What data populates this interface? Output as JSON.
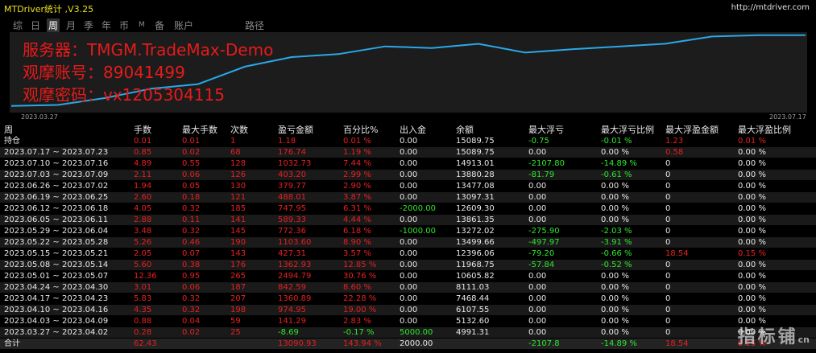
{
  "window": {
    "title": "MTDriver统计 ,V3.25",
    "url": "http://mtdriver.com"
  },
  "tabs": [
    {
      "label": "综",
      "active": false
    },
    {
      "label": "日",
      "active": false
    },
    {
      "label": "周",
      "active": true
    },
    {
      "label": "月",
      "active": false
    },
    {
      "label": "季",
      "active": false
    },
    {
      "label": "年",
      "active": false
    },
    {
      "label": "币",
      "active": false
    },
    {
      "label": "M",
      "active": false
    },
    {
      "label": "备",
      "active": false
    },
    {
      "label": "账户",
      "active": false
    },
    {
      "label": "路径",
      "active": false
    }
  ],
  "overlay": {
    "line1": "服务器：TMGM.TradeMax-Demo",
    "line2": "观摩账号：89041499",
    "line3": "观摩密码：vx1205304115"
  },
  "chart_data": {
    "type": "line",
    "x_start_label": "2023.03.27",
    "x_end_label": "2023.07.17",
    "values": [
      4991.31,
      5132.6,
      6107.55,
      7468.44,
      8111.03,
      10605.82,
      11968.75,
      12396.06,
      13499.66,
      13272.02,
      13861.35,
      12609.3,
      13097.31,
      13477.08,
      13880.28,
      14913.01,
      15089.75,
      15089.75
    ],
    "ylim": [
      4500,
      15300
    ],
    "color": "#2aa8e8",
    "background": "#1c1c1c"
  },
  "table": {
    "headers": [
      "周",
      "手数",
      "最大手数",
      "次数",
      "盈亏金额",
      "百分比%",
      "出入金",
      "余额",
      "最大浮亏",
      "最大浮亏比例",
      "最大浮盈金额",
      "最大浮盈比例"
    ],
    "rows": [
      [
        "持仓",
        "0.01",
        "0.01",
        "1",
        "1.18",
        "0.01 %",
        "0.00",
        "15089.75",
        "-0.75",
        "-0.01 %",
        "1.23",
        "0.01 %"
      ],
      [
        "2023.07.17 ~ 2023.07.23",
        "0.85",
        "0.02",
        "68",
        "176.74",
        "1.19 %",
        "0.00",
        "15089.75",
        "0.00",
        "0.00 %",
        "0.58",
        "0.00 %"
      ],
      [
        "2023.07.10 ~ 2023.07.16",
        "4.89",
        "0.55",
        "128",
        "1032.73",
        "7.44 %",
        "0.00",
        "14913.01",
        "-2107.80",
        "-14.89 %",
        "0",
        "0.00 %"
      ],
      [
        "2023.07.03 ~ 2023.07.09",
        "2.11",
        "0.06",
        "126",
        "403.20",
        "2.99 %",
        "0.00",
        "13880.28",
        "-81.79",
        "-0.61 %",
        "0",
        "0.00 %"
      ],
      [
        "2023.06.26 ~ 2023.07.02",
        "1.94",
        "0.05",
        "130",
        "379.77",
        "2.90 %",
        "0.00",
        "13477.08",
        "0.00",
        "0.00 %",
        "0",
        "0.00 %"
      ],
      [
        "2023.06.19 ~ 2023.06.25",
        "2.60",
        "0.18",
        "121",
        "488.01",
        "3.87 %",
        "0.00",
        "13097.31",
        "0.00",
        "0.00 %",
        "0",
        "0.00 %"
      ],
      [
        "2023.06.12 ~ 2023.06.18",
        "4.05",
        "0.32",
        "185",
        "747.95",
        "6.31 %",
        "-2000.00",
        "12609.30",
        "0.00",
        "0.00 %",
        "0",
        "0.00 %"
      ],
      [
        "2023.06.05 ~ 2023.06.11",
        "2.88",
        "0.11",
        "141",
        "589.33",
        "4.44 %",
        "0.00",
        "13861.35",
        "0.00",
        "0.00 %",
        "0",
        "0.00 %"
      ],
      [
        "2023.05.29 ~ 2023.06.04",
        "3.48",
        "0.32",
        "145",
        "772.36",
        "6.18 %",
        "-1000.00",
        "13272.02",
        "-275.90",
        "-2.03 %",
        "0",
        "0.00 %"
      ],
      [
        "2023.05.22 ~ 2023.05.28",
        "5.26",
        "0.46",
        "190",
        "1103.60",
        "8.90 %",
        "0.00",
        "13499.66",
        "-497.97",
        "-3.91 %",
        "0",
        "0.00 %"
      ],
      [
        "2023.05.15 ~ 2023.05.21",
        "2.05",
        "0.07",
        "143",
        "427.31",
        "3.57 %",
        "0.00",
        "12396.06",
        "-79.20",
        "-0.66 %",
        "18.54",
        "0.15 %"
      ],
      [
        "2023.05.08 ~ 2023.05.14",
        "5.60",
        "0.38",
        "176",
        "1362.93",
        "12.85 %",
        "0.00",
        "11968.75",
        "-57.84",
        "-0.52 %",
        "0",
        "0.00 %"
      ],
      [
        "2023.05.01 ~ 2023.05.07",
        "12.36",
        "0.95",
        "265",
        "2494.79",
        "30.76 %",
        "0.00",
        "10605.82",
        "0.00",
        "0.00 %",
        "0",
        "0.00 %"
      ],
      [
        "2023.04.24 ~ 2023.04.30",
        "3.01",
        "0.06",
        "187",
        "842.59",
        "8.60 %",
        "0.00",
        "8111.03",
        "0.00",
        "0.00 %",
        "0",
        "0.00 %"
      ],
      [
        "2023.04.17 ~ 2023.04.23",
        "5.83",
        "0.32",
        "207",
        "1360.89",
        "22.28 %",
        "0.00",
        "7468.44",
        "0.00",
        "0.00 %",
        "0",
        "0.00 %"
      ],
      [
        "2023.04.10 ~ 2023.04.16",
        "4.35",
        "0.32",
        "198",
        "974.95",
        "19.00 %",
        "0.00",
        "6107.55",
        "0.00",
        "0.00 %",
        "0",
        "0.00 %"
      ],
      [
        "2023.04.03 ~ 2023.04.09",
        "0.88",
        "0.04",
        "59",
        "141.29",
        "2.83 %",
        "0.00",
        "5132.60",
        "0.00",
        "0.00 %",
        "0",
        "0.00 %"
      ],
      [
        "2023.03.27 ~ 2023.04.02",
        "0.28",
        "0.02",
        "25",
        "-8.69",
        "-0.17 %",
        "5000.00",
        "4991.31",
        "0.00",
        "0.00 %",
        "0",
        "0.00 %"
      ]
    ],
    "total": [
      "合计",
      "62.43",
      "",
      "",
      "13090.93",
      "143.94 %",
      "2000.00",
      "",
      "-2107.8",
      "-14.89 %",
      "18.54",
      "0.15 %"
    ]
  },
  "watermark": {
    "text": "指标铺",
    "sub": "cn"
  }
}
